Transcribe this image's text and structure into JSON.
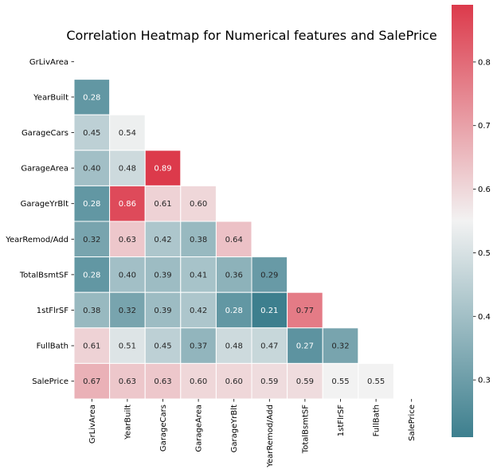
{
  "chart_data": {
    "type": "heatmap",
    "title": "Correlation Heatmap for Numerical features and SalePrice",
    "variables": [
      "GrLivArea",
      "YearBuilt",
      "GarageCars",
      "GarageArea",
      "GarageYrBlt",
      "YearRemod/Add",
      "TotalBsmtSF",
      "1stFlrSF",
      "FullBath",
      "SalePrice"
    ],
    "lower_triangle": [
      [],
      [
        0.28
      ],
      [
        0.45,
        0.54
      ],
      [
        0.4,
        0.48,
        0.89
      ],
      [
        0.28,
        0.86,
        0.61,
        0.6
      ],
      [
        0.32,
        0.63,
        0.42,
        0.38,
        0.64
      ],
      [
        0.28,
        0.4,
        0.39,
        0.41,
        0.36,
        0.29
      ],
      [
        0.38,
        0.32,
        0.39,
        0.42,
        0.28,
        0.21,
        0.77
      ],
      [
        0.61,
        0.51,
        0.45,
        0.37,
        0.48,
        0.47,
        0.27,
        0.32
      ],
      [
        0.67,
        0.63,
        0.63,
        0.6,
        0.6,
        0.59,
        0.59,
        0.55,
        0.55
      ]
    ],
    "value_format": "0.00",
    "mask": "upper triangle and diagonal",
    "colormap": {
      "low": "#3d7f8e",
      "mid": "#f2f2f2",
      "high": "#dc3a4b"
    },
    "color_range": [
      0.21,
      0.89
    ],
    "colorbar": {
      "ticks": [
        "0.3",
        "0.4",
        "0.5",
        "0.6",
        "0.7",
        "0.8"
      ],
      "placement": "right"
    },
    "legend": "colorbar-right",
    "grid": false
  }
}
